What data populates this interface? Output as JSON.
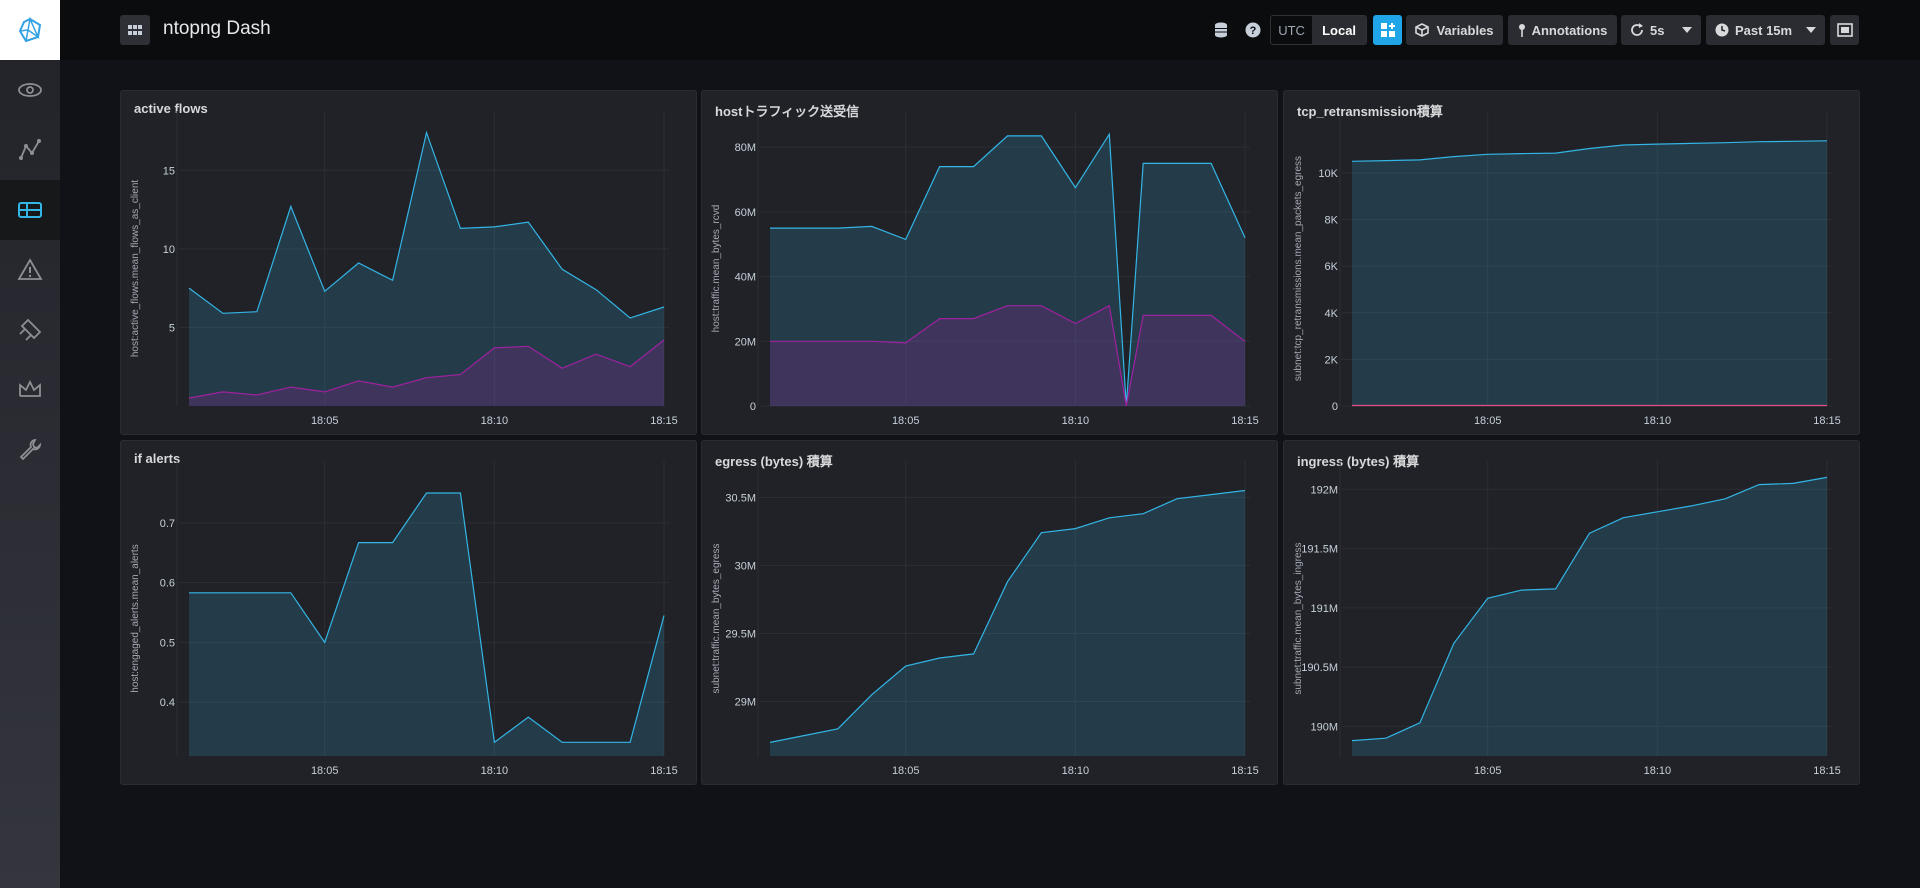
{
  "app": {
    "title": "ntopng Dash"
  },
  "sidebar": {
    "items": [
      "eye-icon",
      "graph-icon",
      "dashboard-icon",
      "alert-icon",
      "plugin-icon",
      "crown-icon",
      "wrench-icon"
    ]
  },
  "toolbar": {
    "utc": "UTC",
    "local": "Local",
    "variables": "Variables",
    "annotations": "Annotations",
    "refresh": "5s",
    "timerange": "Past 15m"
  },
  "colors": {
    "line": "#33b5e5",
    "fill": "rgba(51,181,229,0.18)",
    "purple": "#a020a0",
    "pink": "#e24d8a"
  },
  "panels": [
    {
      "title": "active flows",
      "ylabel": "host:active_flows.mean_flows_as_client"
    },
    {
      "title": "hostトラフィック送受信",
      "ylabel": "host:traffic.mean_bytes_rcvd"
    },
    {
      "title": "tcp_retransmission積算",
      "ylabel": "subnet:tcp_retransmissions.mean_packets_egress"
    },
    {
      "title": "if alerts",
      "ylabel": "host:engaged_alerts.mean_alerts"
    },
    {
      "title": "egress (bytes) 積算",
      "ylabel": "subnet:traffic.mean_bytes_egress"
    },
    {
      "title": "ingress (bytes) 積算",
      "ylabel": "subnet:traffic.mean_bytes_ingress"
    }
  ],
  "chart_data": [
    {
      "type": "area",
      "title": "active flows",
      "ylabel": "host:active_flows.mean_flows_as_client",
      "x": [
        "18:01",
        "18:02",
        "18:03",
        "18:04",
        "18:05",
        "18:06",
        "18:07",
        "18:08",
        "18:09",
        "18:10",
        "18:11",
        "18:12",
        "18:13",
        "18:14",
        "18:15"
      ],
      "x_ticks": [
        "18:05",
        "18:10",
        "18:15"
      ],
      "y_ticks": [
        "5",
        "10",
        "15"
      ],
      "ylim": [
        0,
        17.5
      ],
      "series": [
        {
          "values": [
            7.5,
            5.9,
            6.0,
            12.7,
            7.3,
            9.1,
            8.0,
            17.4,
            11.3,
            11.4,
            11.7,
            8.7,
            7.4,
            5.6,
            6.3
          ]
        },
        {
          "values": [
            0.5,
            0.9,
            0.7,
            1.2,
            0.9,
            1.6,
            1.2,
            1.8,
            2.0,
            3.7,
            3.8,
            2.4,
            3.3,
            2.5,
            4.2
          ]
        }
      ]
    },
    {
      "type": "area",
      "title": "hostトラフィック送受信",
      "ylabel": "host:traffic.mean_bytes_rcvd",
      "x": [
        "18:01",
        "18:02",
        "18:03",
        "18:04",
        "18:05",
        "18:06",
        "18:07",
        "18:08",
        "18:09",
        "18:10",
        "18:11",
        "18:11:30",
        "18:12",
        "18:13",
        "18:14",
        "18:15"
      ],
      "x_ticks": [
        "18:05",
        "18:10",
        "18:15"
      ],
      "y_ticks": [
        "0",
        "20M",
        "40M",
        "60M",
        "80M"
      ],
      "ylim": [
        0,
        85
      ],
      "series": [
        {
          "values": [
            55,
            55,
            55,
            55.5,
            51.5,
            74,
            74,
            83.5,
            83.5,
            67.5,
            84,
            0,
            75,
            75,
            75,
            52
          ]
        },
        {
          "values": [
            20,
            20,
            20,
            20,
            19.5,
            27,
            27,
            31,
            31,
            25.5,
            31,
            0,
            28,
            28,
            28,
            20
          ]
        }
      ]
    },
    {
      "type": "area",
      "title": "tcp_retransmission積算",
      "ylabel": "subnet:tcp_retransmissions.mean_packets_egress",
      "x": [
        "18:01",
        "18:02",
        "18:03",
        "18:04",
        "18:05",
        "18:06",
        "18:07",
        "18:08",
        "18:09",
        "18:10",
        "18:11",
        "18:12",
        "18:13",
        "18:14",
        "18:15"
      ],
      "x_ticks": [
        "18:05",
        "18:10",
        "18:15"
      ],
      "y_ticks": [
        "0",
        "2K",
        "4K",
        "6K",
        "8K",
        "10K"
      ],
      "ylim": [
        0,
        11800
      ],
      "series": [
        {
          "values": [
            10500,
            10530,
            10560,
            10700,
            10800,
            10830,
            10850,
            11050,
            11200,
            11240,
            11270,
            11300,
            11340,
            11360,
            11380
          ]
        },
        {
          "values": [
            20,
            20,
            20,
            20,
            20,
            20,
            20,
            20,
            20,
            20,
            20,
            20,
            20,
            20,
            20
          ]
        }
      ]
    },
    {
      "type": "area",
      "title": "if alerts",
      "ylabel": "host:engaged_alerts.mean_alerts",
      "x": [
        "18:01",
        "18:02",
        "18:03",
        "18:04",
        "18:05",
        "18:06",
        "18:07",
        "18:08",
        "18:09",
        "18:10",
        "18:11",
        "18:12",
        "18:13",
        "18:14",
        "18:15"
      ],
      "x_ticks": [
        "18:05",
        "18:10",
        "18:15"
      ],
      "y_ticks": [
        "0.4",
        "0.5",
        "0.6",
        "0.7"
      ],
      "ylim": [
        0.31,
        0.77
      ],
      "series": [
        {
          "values": [
            0.583,
            0.583,
            0.583,
            0.583,
            0.5,
            0.667,
            0.667,
            0.75,
            0.75,
            0.333,
            0.375,
            0.333,
            0.333,
            0.333,
            0.545
          ]
        }
      ]
    },
    {
      "type": "area",
      "title": "egress (bytes) 積算",
      "ylabel": "subnet:traffic.mean_bytes_egress",
      "x": [
        "18:01",
        "18:02",
        "18:03",
        "18:04",
        "18:05",
        "18:06",
        "18:07",
        "18:08",
        "18:09",
        "18:10",
        "18:11",
        "18:12",
        "18:13",
        "18:14",
        "18:15"
      ],
      "x_ticks": [
        "18:05",
        "18:10",
        "18:15"
      ],
      "y_ticks": [
        "29M",
        "29.5M",
        "30M",
        "30.5M"
      ],
      "ylim": [
        28.6,
        30.62
      ],
      "series": [
        {
          "values": [
            28.7,
            28.75,
            28.8,
            29.05,
            29.26,
            29.32,
            29.35,
            29.88,
            30.24,
            30.27,
            30.35,
            30.38,
            30.49,
            30.52,
            30.55
          ]
        }
      ]
    },
    {
      "type": "area",
      "title": "ingress (bytes) 積算",
      "ylabel": "subnet:traffic.mean_bytes_ingress",
      "x": [
        "18:01",
        "18:02",
        "18:03",
        "18:04",
        "18:05",
        "18:06",
        "18:07",
        "18:08",
        "18:09",
        "18:10",
        "18:11",
        "18:12",
        "18:13",
        "18:14",
        "18:15"
      ],
      "x_ticks": [
        "18:05",
        "18:10",
        "18:15"
      ],
      "y_ticks": [
        "190M",
        "190.5M",
        "191M",
        "191.5M",
        "192M"
      ],
      "ylim": [
        189.75,
        192.07
      ],
      "series": [
        {
          "values": [
            189.88,
            189.9,
            190.03,
            190.7,
            191.08,
            191.15,
            191.16,
            191.63,
            191.76,
            191.81,
            191.86,
            191.92,
            192.04,
            192.05,
            192.1
          ]
        }
      ]
    }
  ]
}
